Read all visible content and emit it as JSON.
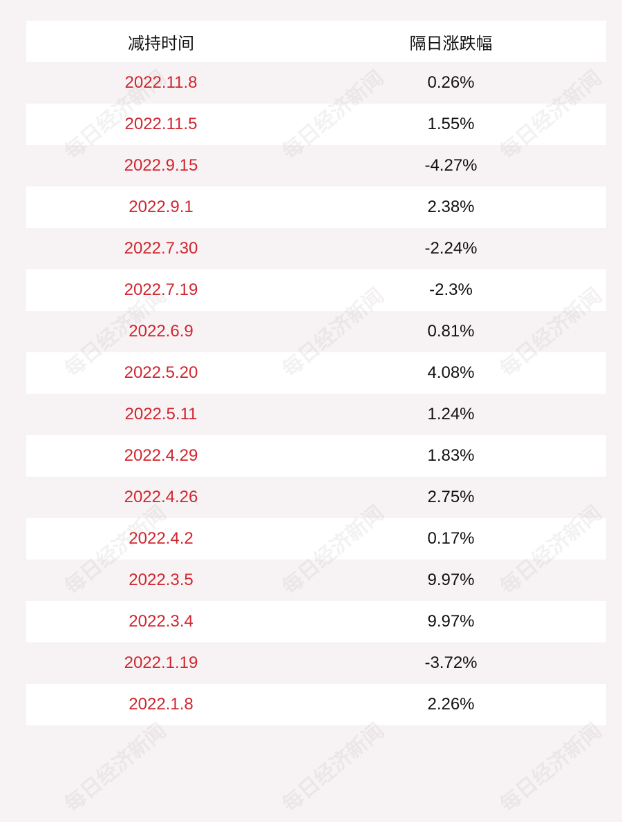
{
  "table": {
    "header": [
      "减持时间",
      "隔日涨跌幅"
    ],
    "rows": [
      [
        "2022.11.8",
        "0.26%"
      ],
      [
        "2022.11.5",
        "1.55%"
      ],
      [
        "2022.9.15",
        "-4.27%"
      ],
      [
        "2022.9.1",
        "2.38%"
      ],
      [
        "2022.7.30",
        "-2.24%"
      ],
      [
        "2022.7.19",
        "-2.3%"
      ],
      [
        "2022.6.9",
        "0.81%"
      ],
      [
        "2022.5.20",
        "4.08%"
      ],
      [
        "2022.5.11",
        "1.24%"
      ],
      [
        "2022.4.29",
        "1.83%"
      ],
      [
        "2022.4.26",
        "2.75%"
      ],
      [
        "2022.4.2",
        "0.17%"
      ],
      [
        "2022.3.5",
        "9.97%"
      ],
      [
        "2022.3.4",
        "9.97%"
      ],
      [
        "2022.1.19",
        "-3.72%"
      ],
      [
        "2022.1.8",
        "2.26%"
      ]
    ]
  },
  "watermark": "每日经济新闻"
}
